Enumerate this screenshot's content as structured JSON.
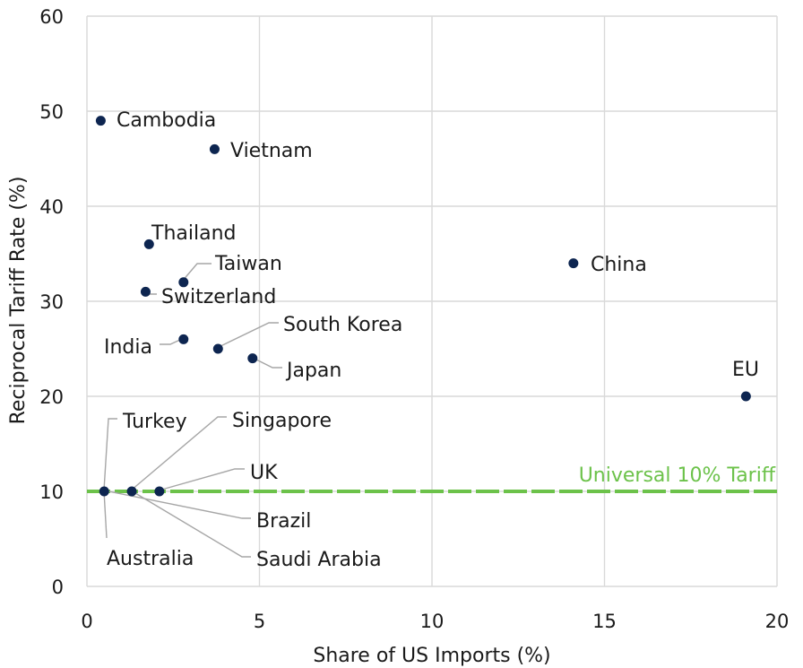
{
  "chart_data": {
    "type": "scatter",
    "title": "",
    "xlabel": "Share of US Imports (%)",
    "ylabel": "Reciprocal Tariff Rate (%)",
    "xlim": [
      0,
      20
    ],
    "ylim": [
      0,
      60
    ],
    "xticks": [
      0,
      5,
      10,
      15,
      20
    ],
    "yticks": [
      0,
      10,
      20,
      30,
      40,
      50,
      60
    ],
    "grid": true,
    "point_color": "#0d2550",
    "reference_line": {
      "label": "Universal 10% Tariff",
      "y": 10,
      "color": "#6cc24a",
      "style": "dashed"
    },
    "points": [
      {
        "label": "Cambodia",
        "x": 0.4,
        "y": 49
      },
      {
        "label": "Vietnam",
        "x": 3.7,
        "y": 46
      },
      {
        "label": "Thailand",
        "x": 1.8,
        "y": 36
      },
      {
        "label": "Taiwan",
        "x": 2.8,
        "y": 32
      },
      {
        "label": "Switzerland",
        "x": 1.7,
        "y": 31
      },
      {
        "label": "China",
        "x": 14.1,
        "y": 34
      },
      {
        "label": "India",
        "x": 2.8,
        "y": 26
      },
      {
        "label": "South Korea",
        "x": 3.8,
        "y": 25
      },
      {
        "label": "Japan",
        "x": 4.8,
        "y": 24
      },
      {
        "label": "EU",
        "x": 19.1,
        "y": 20
      },
      {
        "label": "Turkey",
        "x": 0.5,
        "y": 10
      },
      {
        "label": "Australia",
        "x": 0.5,
        "y": 10
      },
      {
        "label": "Singapore",
        "x": 1.3,
        "y": 10
      },
      {
        "label": "Brazil",
        "x": 1.3,
        "y": 10
      },
      {
        "label": "UK",
        "x": 2.1,
        "y": 10
      },
      {
        "label": "Saudi Arabia",
        "x": 2.1,
        "y": 10
      }
    ]
  }
}
